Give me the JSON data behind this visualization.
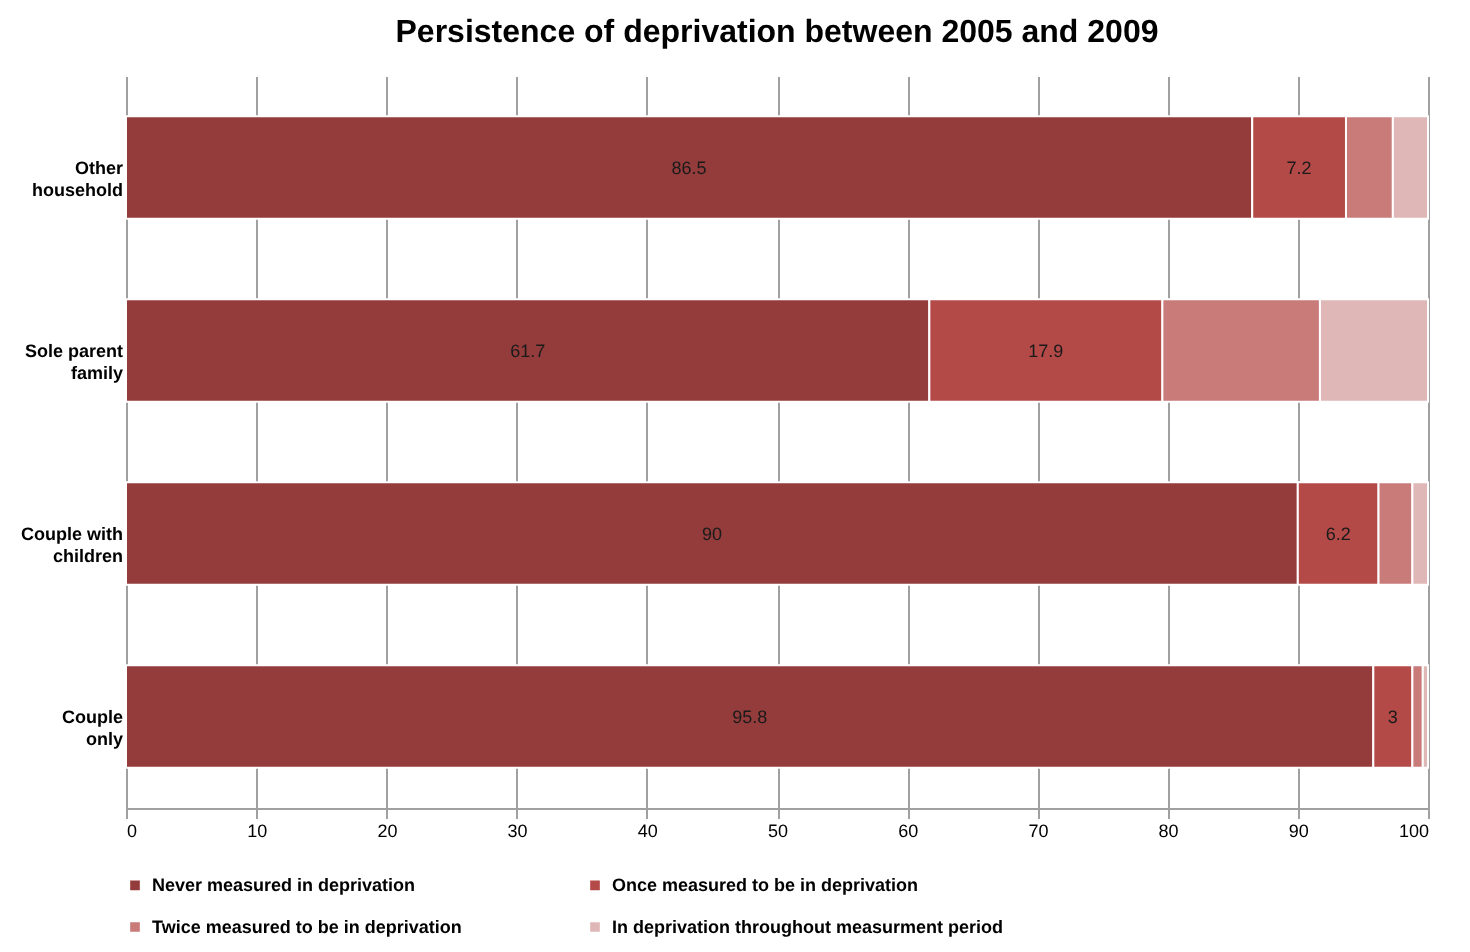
{
  "chart_data": {
    "type": "bar",
    "orientation": "horizontal",
    "stacked": true,
    "title": "Persistence of deprivation between 2005 and 2009",
    "categories": [
      "Other household",
      "Sole parent family",
      "Couple with children",
      "Couple only"
    ],
    "series": [
      {
        "name": "Never measured in deprivation",
        "color": "#943c3c",
        "values": [
          86.5,
          61.7,
          90,
          95.8
        ],
        "value_labels": [
          "86.5",
          "61.7",
          "90",
          "95.8"
        ]
      },
      {
        "name": "Once measured to be in deprivation",
        "color": "#b34a48",
        "values": [
          7.2,
          17.9,
          6.2,
          3
        ],
        "value_labels": [
          "7.2",
          "17.9",
          "6.2",
          "3"
        ]
      },
      {
        "name": "Twice measured to be in deprivation",
        "color": "#c97b7a",
        "values": [
          3.6,
          12.1,
          2.6,
          0.8
        ]
      },
      {
        "name": "In deprivation throughout measurment period",
        "color": "#e0b7b7",
        "values": [
          2.7,
          8.3,
          1.2,
          0.4
        ]
      }
    ],
    "xlim": [
      0,
      100
    ],
    "xticks": [
      0,
      10,
      20,
      30,
      40,
      50,
      60,
      70,
      80,
      90,
      100
    ],
    "grid": "x",
    "legend": "bottom"
  }
}
